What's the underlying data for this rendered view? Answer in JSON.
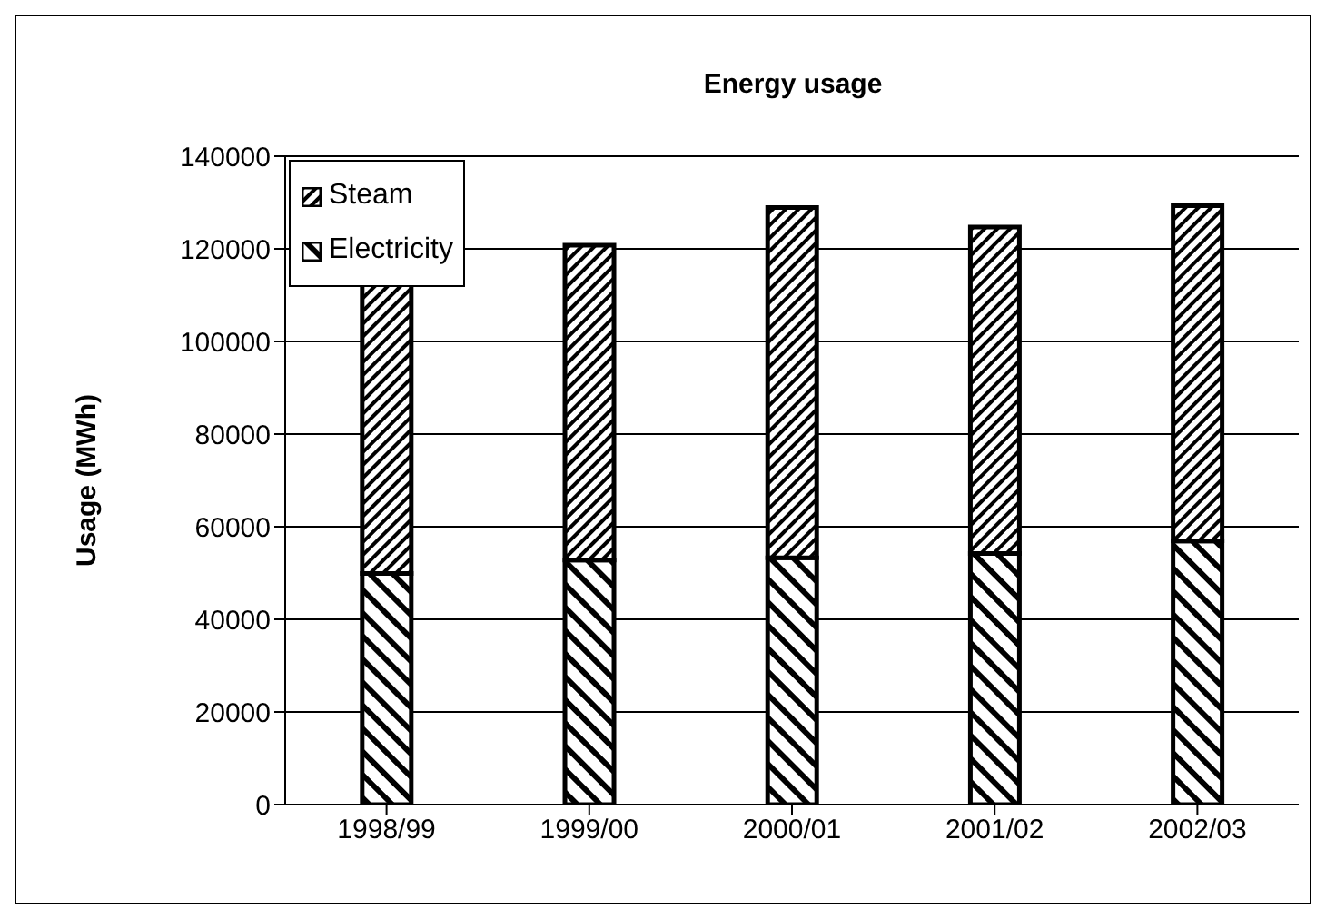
{
  "chart_data": {
    "type": "bar",
    "title": "Energy usage",
    "ylabel": "Usage (MWh)",
    "categories": [
      "1998/99",
      "1999/00",
      "2000/01",
      "2001/02",
      "2002/03"
    ],
    "stacked": true,
    "series": [
      {
        "name": "Electricity",
        "color": "#000000",
        "values": [
          49900,
          52800,
          53300,
          54200,
          56900
        ]
      },
      {
        "name": "Steam",
        "color": "#000000",
        "values": [
          62800,
          68000,
          75600,
          70500,
          72400
        ]
      }
    ],
    "ylim": [
      0,
      140000
    ],
    "yticks": [
      0,
      20000,
      40000,
      60000,
      80000,
      100000,
      120000,
      140000
    ],
    "grid": "y",
    "legend": "top left"
  }
}
